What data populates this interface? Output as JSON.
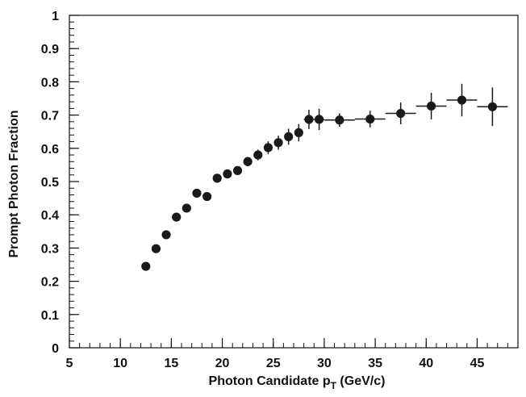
{
  "chart_data": {
    "type": "scatter",
    "title": "",
    "xlabel": "Photon Candidate p_T (GeV/c)",
    "xlabel_main": "Photon Candidate p",
    "xlabel_sub": "T",
    "xlabel_unit": " (GeV/c)",
    "ylabel": "Prompt Photon Fraction",
    "xlim": [
      5,
      49
    ],
    "ylim": [
      0,
      1
    ],
    "x_major_ticks": [
      5,
      10,
      15,
      20,
      25,
      30,
      35,
      40,
      45
    ],
    "y_major_ticks": [
      0,
      0.1,
      0.2,
      0.3,
      0.4,
      0.5,
      0.6,
      0.7,
      0.8,
      0.9,
      1
    ],
    "x_tick_labels": [
      "5",
      "10",
      "15",
      "20",
      "25",
      "30",
      "35",
      "40",
      "45"
    ],
    "y_tick_labels": [
      "0",
      "0.1",
      "0.2",
      "0.3",
      "0.4",
      "0.5",
      "0.6",
      "0.7",
      "0.8",
      "0.9",
      "1"
    ],
    "grid": false,
    "marker_color": "#1a1a1a",
    "series": [
      {
        "points": [
          {
            "x": 12.5,
            "y": 0.245,
            "xerr": 0,
            "yerr": 0.006
          },
          {
            "x": 13.5,
            "y": 0.298,
            "xerr": 0,
            "yerr": 0.006
          },
          {
            "x": 14.5,
            "y": 0.34,
            "xerr": 0,
            "yerr": 0.007
          },
          {
            "x": 15.5,
            "y": 0.393,
            "xerr": 0,
            "yerr": 0.007
          },
          {
            "x": 16.5,
            "y": 0.42,
            "xerr": 0,
            "yerr": 0.008
          },
          {
            "x": 17.5,
            "y": 0.465,
            "xerr": 0,
            "yerr": 0.008
          },
          {
            "x": 18.5,
            "y": 0.455,
            "xerr": 0,
            "yerr": 0.009
          },
          {
            "x": 19.5,
            "y": 0.51,
            "xerr": 0,
            "yerr": 0.01
          },
          {
            "x": 20.5,
            "y": 0.523,
            "xerr": 0,
            "yerr": 0.011
          },
          {
            "x": 21.5,
            "y": 0.533,
            "xerr": 0,
            "yerr": 0.012
          },
          {
            "x": 22.5,
            "y": 0.56,
            "xerr": 0,
            "yerr": 0.014
          },
          {
            "x": 23.5,
            "y": 0.58,
            "xerr": 0,
            "yerr": 0.016
          },
          {
            "x": 24.5,
            "y": 0.602,
            "xerr": 0,
            "yerr": 0.019
          },
          {
            "x": 25.5,
            "y": 0.617,
            "xerr": 0,
            "yerr": 0.021
          },
          {
            "x": 26.5,
            "y": 0.635,
            "xerr": 0,
            "yerr": 0.024
          },
          {
            "x": 27.5,
            "y": 0.647,
            "xerr": 0,
            "yerr": 0.026
          },
          {
            "x": 28.5,
            "y": 0.687,
            "xerr": 0.5,
            "yerr": 0.029
          },
          {
            "x": 29.5,
            "y": 0.687,
            "xerr": 0.5,
            "yerr": 0.032
          },
          {
            "x": 31.5,
            "y": 0.685,
            "xerr": 1.5,
            "yerr": 0.02
          },
          {
            "x": 34.5,
            "y": 0.688,
            "xerr": 1.5,
            "yerr": 0.025
          },
          {
            "x": 37.5,
            "y": 0.705,
            "xerr": 1.5,
            "yerr": 0.033
          },
          {
            "x": 40.5,
            "y": 0.727,
            "xerr": 1.5,
            "yerr": 0.04
          },
          {
            "x": 43.5,
            "y": 0.745,
            "xerr": 1.5,
            "yerr": 0.049
          },
          {
            "x": 46.5,
            "y": 0.725,
            "xerr": 1.5,
            "yerr": 0.058
          }
        ]
      }
    ]
  }
}
